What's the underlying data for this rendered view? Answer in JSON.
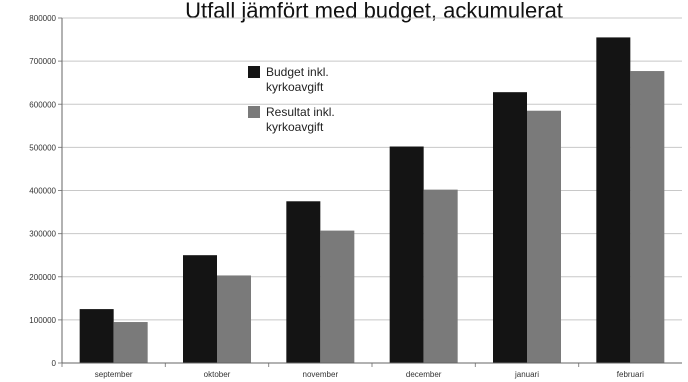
{
  "chart_data": {
    "type": "bar",
    "title": "Utfall jämfört med budget, ackumulerat",
    "xlabel": "",
    "ylabel": "",
    "categories": [
      "september",
      "oktober",
      "november",
      "december",
      "januari",
      "februari"
    ],
    "series": [
      {
        "name": "Budget inkl. kyrkoavgift",
        "label_lines": [
          "Budget inkl.",
          "kyrkoavgift"
        ],
        "color": "#141414",
        "values": [
          125000,
          250000,
          375000,
          502000,
          628000,
          755000
        ]
      },
      {
        "name": "Resultat inkl. kyrkoavgift",
        "label_lines": [
          "Resultat inkl.",
          "kyrkoavgift"
        ],
        "color": "#7a7a7a",
        "values": [
          95000,
          203000,
          307000,
          402000,
          585000,
          677000
        ]
      }
    ],
    "ylim": [
      0,
      800000
    ],
    "yticks": [
      "0",
      "100000",
      "200000",
      "300000",
      "400000",
      "500000",
      "600000",
      "700000",
      "800000"
    ],
    "grid": true,
    "legend_position": "upper-left-inside"
  }
}
